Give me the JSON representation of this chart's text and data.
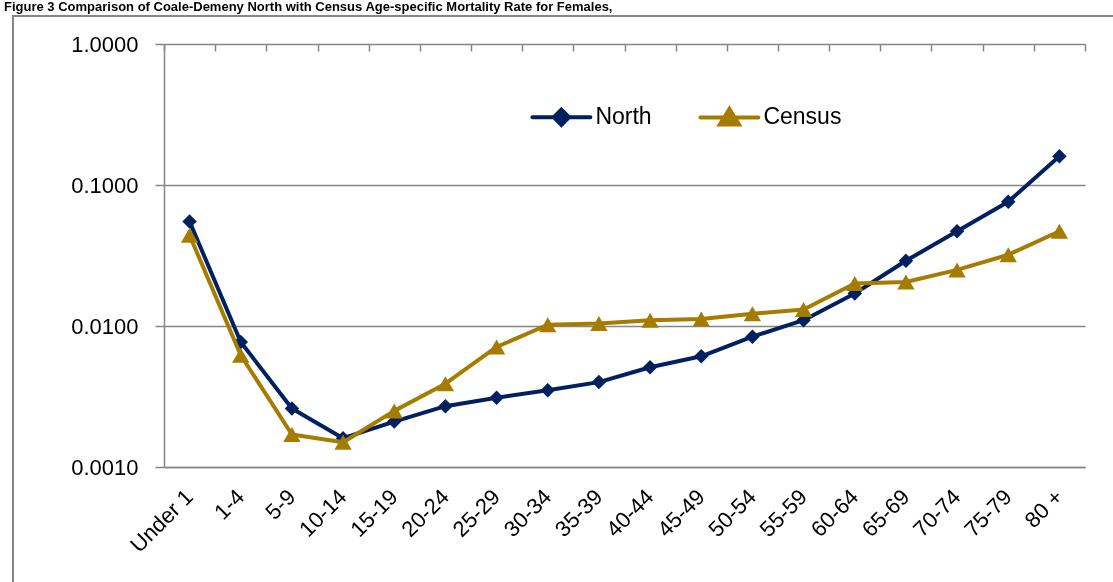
{
  "chart_data": {
    "type": "line",
    "title": "Figure 3 Comparison of Coale-Demeny North with Census Age-specific Mortality Rate for Females,",
    "categories": [
      "Under 1",
      "1-4",
      "5-9",
      "10-14",
      "15-19",
      "20-24",
      "25-29",
      "30-34",
      "35-39",
      "40-44",
      "45-49",
      "50-54",
      "55-59",
      "60-64",
      "65-69",
      "70-74",
      "75-79",
      "80 +"
    ],
    "series": [
      {
        "name": "North",
        "color": "#002060",
        "marker": "diamond",
        "values": [
          0.055,
          0.0077,
          0.0026,
          0.0016,
          0.0021,
          0.0027,
          0.0031,
          0.0035,
          0.004,
          0.0051,
          0.0061,
          0.0084,
          0.011,
          0.017,
          0.029,
          0.047,
          0.076,
          0.16
        ]
      },
      {
        "name": "Census",
        "color": "#a67c00",
        "marker": "triangle",
        "values": [
          0.044,
          0.0062,
          0.0017,
          0.0015,
          0.0025,
          0.0039,
          0.0071,
          0.0102,
          0.0104,
          0.011,
          0.0112,
          0.0122,
          0.0131,
          0.02,
          0.0205,
          0.025,
          0.032,
          0.047
        ]
      }
    ],
    "log": true,
    "ylim": [
      0.001,
      1
    ],
    "yticks": [
      {
        "value": 0.001,
        "label": "0.0010"
      },
      {
        "value": 0.01,
        "label": "0.0100"
      },
      {
        "value": 0.1,
        "label": "0.1000"
      },
      {
        "value": 1,
        "label": "1.0000"
      }
    ],
    "grid": "y",
    "legend": "top"
  }
}
